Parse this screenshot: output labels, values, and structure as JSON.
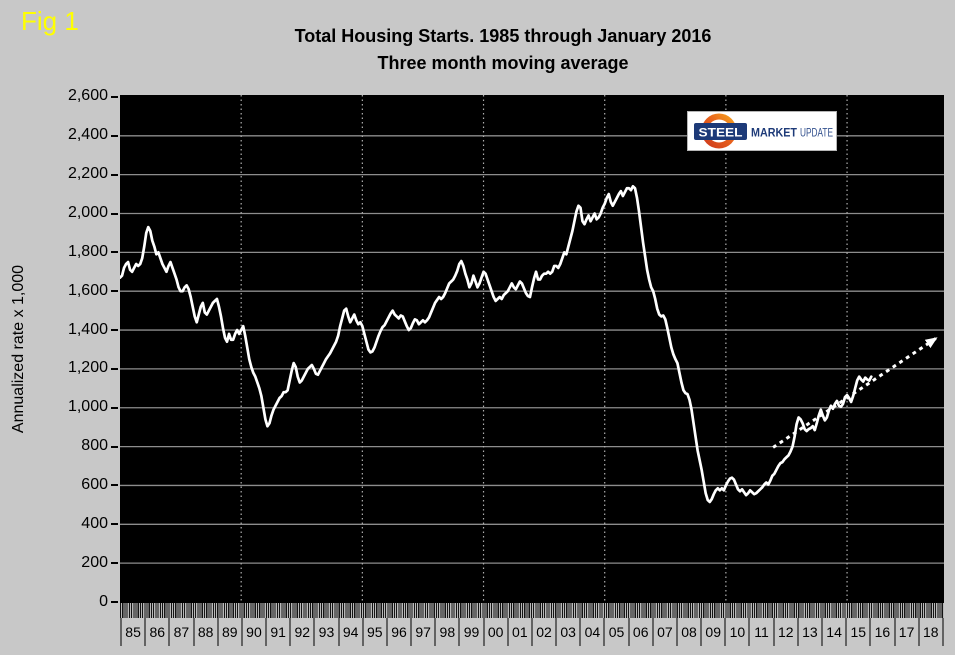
{
  "fig_label": "Fig 1",
  "header": {
    "title_line1": "Total Housing Starts. 1985 through January 2016",
    "title_line2": "Three month moving average"
  },
  "y_axis_title": "Annualized rate x 1,000",
  "logo": {
    "steel": "STEEL",
    "market": "MARKET",
    "update": "UPDATE",
    "navy": "#1d3a78",
    "update_blue": "#33518e",
    "orange_dark": "#cf3a1b",
    "orange_mid": "#e8621d",
    "orange_light": "#f5a01f"
  },
  "colors": {
    "background": "#c8c8c8",
    "plot_background": "#000000",
    "line": "#ffffff",
    "grid_horizontal": "#8d8d8d",
    "grid_vertical": "#aeaeae",
    "fig_label": "#ffff00",
    "text": "#000000"
  },
  "chart_data": {
    "type": "line",
    "title": "Total Housing Starts. 1985 through January 2016",
    "subtitle": "Three month moving average",
    "xlabel": "",
    "ylabel": "Annualized rate x 1,000",
    "ylim": [
      0,
      2610
    ],
    "y_ticks": [
      0,
      200,
      400,
      600,
      800,
      1000,
      1200,
      1400,
      1600,
      1800,
      2000,
      2200,
      2400,
      2600
    ],
    "y_tick_labels": [
      "0",
      "200",
      "400",
      "600",
      "800",
      "1,000",
      "1,200",
      "1,400",
      "1,600",
      "1,800",
      "2,000",
      "2,200",
      "2,400",
      "2,600"
    ],
    "x_labels": [
      "85",
      "86",
      "87",
      "88",
      "89",
      "90",
      "91",
      "92",
      "93",
      "94",
      "95",
      "96",
      "97",
      "98",
      "99",
      "00",
      "01",
      "02",
      "03",
      "04",
      "05",
      "06",
      "07",
      "08",
      "09",
      "10",
      "11",
      "12",
      "13",
      "14",
      "15",
      "16",
      "17",
      "18"
    ],
    "x_minor_ticks": "monthly",
    "grid_vertical_years": [
      1990,
      1995,
      2000,
      2005,
      2010,
      2015
    ],
    "legend_position": "none",
    "series": [
      {
        "name": "Total housing starts, 3-month moving average (annualized rate x 1,000)",
        "start_month": "1985-01",
        "end_month": "2016-01",
        "values": [
          1670,
          1680,
          1720,
          1740,
          1750,
          1710,
          1700,
          1720,
          1740,
          1730,
          1740,
          1770,
          1830,
          1900,
          1930,
          1910,
          1860,
          1830,
          1790,
          1800,
          1770,
          1740,
          1720,
          1700,
          1730,
          1750,
          1720,
          1690,
          1660,
          1620,
          1600,
          1600,
          1620,
          1630,
          1610,
          1570,
          1520,
          1470,
          1440,
          1480,
          1520,
          1540,
          1490,
          1480,
          1500,
          1520,
          1540,
          1550,
          1560,
          1520,
          1470,
          1410,
          1360,
          1340,
          1380,
          1350,
          1350,
          1380,
          1400,
          1380,
          1400,
          1420,
          1370,
          1310,
          1250,
          1210,
          1180,
          1160,
          1130,
          1100,
          1060,
          1000,
          940,
          905,
          920,
          960,
          990,
          1010,
          1030,
          1050,
          1060,
          1080,
          1080,
          1090,
          1140,
          1190,
          1230,
          1210,
          1160,
          1130,
          1140,
          1160,
          1180,
          1200,
          1210,
          1220,
          1200,
          1175,
          1170,
          1190,
          1210,
          1230,
          1250,
          1265,
          1280,
          1300,
          1320,
          1340,
          1370,
          1420,
          1460,
          1500,
          1510,
          1470,
          1440,
          1460,
          1480,
          1450,
          1430,
          1440,
          1420,
          1380,
          1340,
          1300,
          1285,
          1290,
          1310,
          1340,
          1370,
          1395,
          1415,
          1425,
          1445,
          1465,
          1485,
          1500,
          1480,
          1470,
          1460,
          1475,
          1470,
          1445,
          1420,
          1400,
          1410,
          1435,
          1455,
          1450,
          1430,
          1440,
          1450,
          1440,
          1450,
          1465,
          1490,
          1515,
          1540,
          1555,
          1570,
          1560,
          1570,
          1590,
          1615,
          1640,
          1650,
          1660,
          1680,
          1705,
          1740,
          1755,
          1730,
          1690,
          1660,
          1620,
          1640,
          1680,
          1650,
          1620,
          1640,
          1670,
          1700,
          1690,
          1660,
          1630,
          1600,
          1570,
          1550,
          1560,
          1570,
          1560,
          1580,
          1590,
          1600,
          1620,
          1640,
          1620,
          1610,
          1630,
          1650,
          1640,
          1615,
          1590,
          1575,
          1570,
          1620,
          1665,
          1700,
          1660,
          1660,
          1680,
          1690,
          1690,
          1700,
          1690,
          1700,
          1730,
          1730,
          1720,
          1740,
          1770,
          1800,
          1790,
          1830,
          1870,
          1910,
          1960,
          2010,
          2040,
          2030,
          1960,
          1945,
          1970,
          1990,
          1960,
          1980,
          2000,
          1970,
          1980,
          2000,
          2030,
          2050,
          2080,
          2100,
          2060,
          2040,
          2060,
          2080,
          2100,
          2115,
          2090,
          2110,
          2130,
          2130,
          2120,
          2140,
          2130,
          2080,
          2010,
          1930,
          1850,
          1780,
          1710,
          1660,
          1620,
          1600,
          1560,
          1510,
          1480,
          1470,
          1475,
          1455,
          1410,
          1360,
          1310,
          1275,
          1250,
          1230,
          1180,
          1130,
          1090,
          1075,
          1070,
          1040,
          990,
          920,
          850,
          780,
          730,
          680,
          620,
          560,
          525,
          515,
          530,
          555,
          575,
          585,
          575,
          585,
          575,
          600,
          620,
          635,
          640,
          630,
          605,
          580,
          570,
          580,
          565,
          550,
          560,
          575,
          565,
          555,
          560,
          570,
          580,
          590,
          605,
          615,
          605,
          625,
          650,
          660,
          680,
          700,
          715,
          720,
          735,
          745,
          755,
          775,
          800,
          850,
          915,
          950,
          940,
          920,
          890,
          880,
          890,
          895,
          905,
          885,
          920,
          960,
          990,
          960,
          935,
          950,
          985,
          1010,
          995,
          1020,
          1035,
          1010,
          1005,
          1020,
          1055,
          1065,
          1050,
          1030,
          1060,
          1100,
          1140,
          1160,
          1145,
          1135,
          1155,
          1145,
          1140,
          1160
        ]
      }
    ],
    "trend_arrow": {
      "style": "dotted",
      "color": "#ffffff",
      "from": {
        "year": 2012.0,
        "value": 800
      },
      "to": {
        "year": 2018.7,
        "value": 1360
      }
    }
  }
}
